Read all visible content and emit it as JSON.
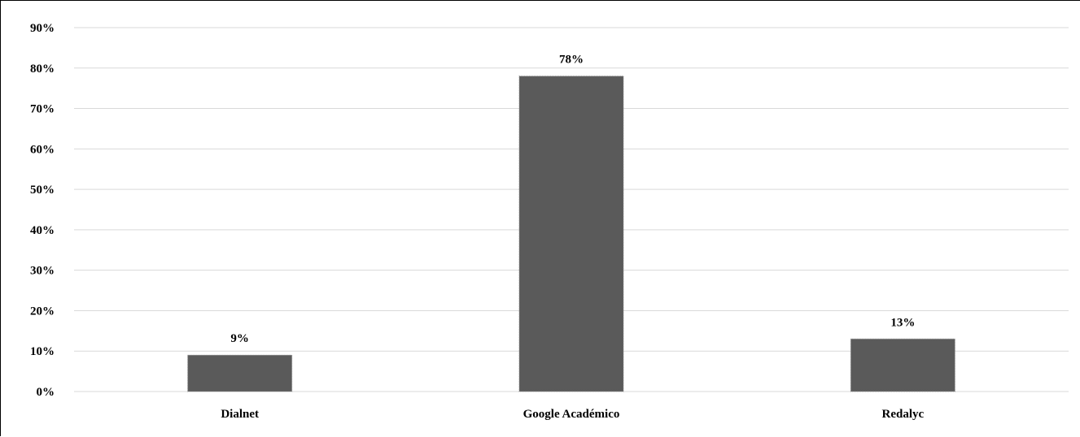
{
  "chart_data": {
    "type": "bar",
    "categories": [
      "Dialnet",
      "Google Académico",
      "Redalyc"
    ],
    "values": [
      9,
      78,
      13
    ],
    "data_labels": [
      "9%",
      "78%",
      "13%"
    ],
    "y_ticks": [
      "0%",
      "10%",
      "20%",
      "30%",
      "40%",
      "50%",
      "60%",
      "70%",
      "80%",
      "90%"
    ],
    "ylim": [
      0,
      90
    ],
    "grid": true,
    "legend": "none",
    "title": "",
    "xlabel": "",
    "ylabel": "",
    "colors": {
      "bar": "#5a5a5a",
      "grid": "#d9d9d9",
      "text": "#000000"
    }
  }
}
